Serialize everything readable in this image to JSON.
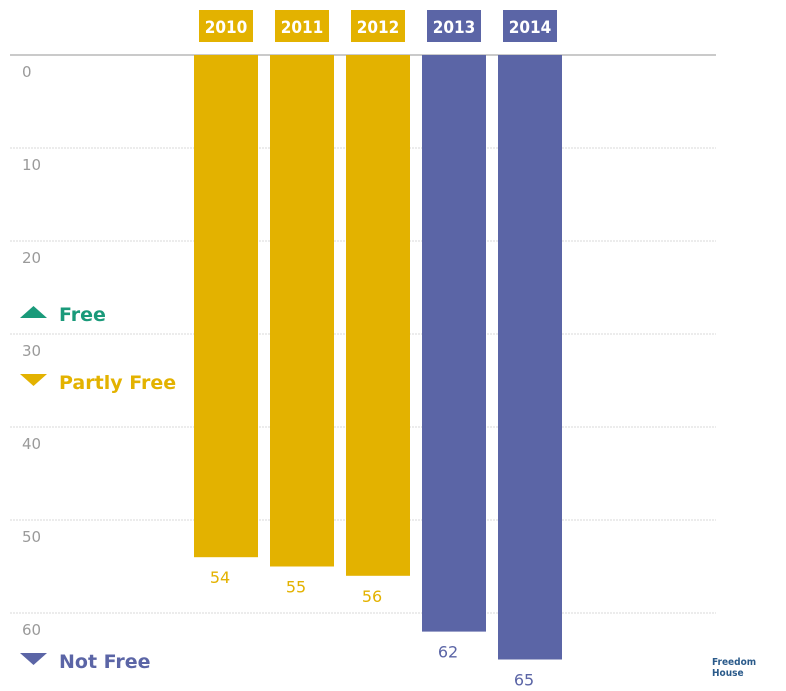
{
  "chart_data": {
    "type": "bar",
    "orientation": "inverted-vertical",
    "categories": [
      "2010",
      "2011",
      "2012",
      "2013",
      "2014"
    ],
    "values": [
      54,
      55,
      56,
      62,
      65
    ],
    "statuses": [
      "Partly Free",
      "Partly Free",
      "Partly Free",
      "Not Free",
      "Not Free"
    ],
    "y_ticks": [
      "0",
      "10",
      "20",
      "30",
      "40",
      "50",
      "60"
    ],
    "ylim": [
      0,
      65
    ],
    "grid": true,
    "legend": [
      {
        "label": "Free",
        "color": "#1a9a7a",
        "direction": "up"
      },
      {
        "label": "Partly Free",
        "color": "#e3b200",
        "direction": "down"
      },
      {
        "label": "Not Free",
        "color": "#5b65a6",
        "direction": "down"
      }
    ],
    "colors": {
      "Partly Free": "#e3b200",
      "Not Free": "#5b65a6",
      "Free": "#1a9a7a"
    }
  },
  "logo": {
    "line1": "Freedom",
    "line2": "House"
  }
}
